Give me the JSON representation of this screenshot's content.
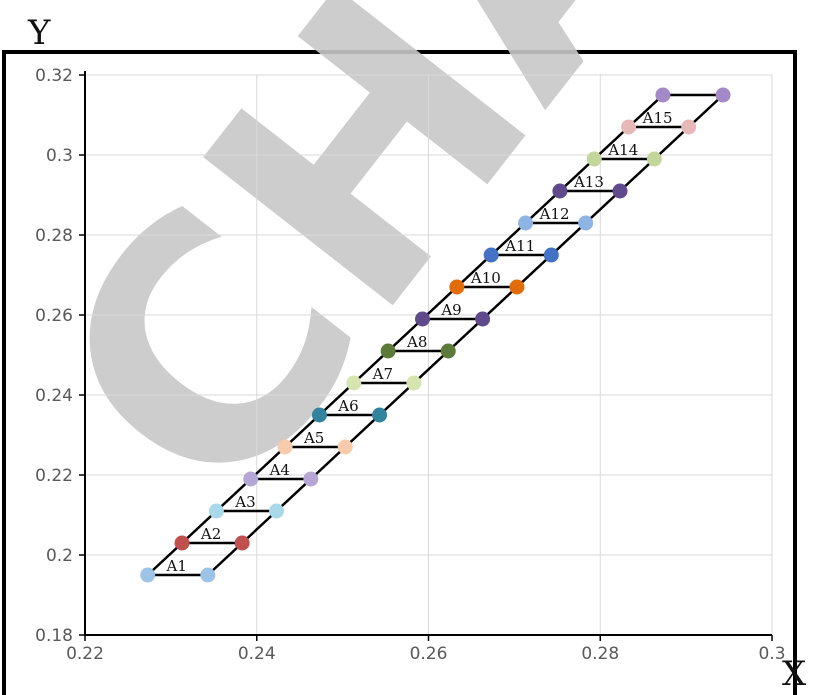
{
  "chart_data": {
    "type": "scatter",
    "xlabel": "X",
    "ylabel": "Y",
    "xlim": [
      0.22,
      0.3
    ],
    "ylim": [
      0.18,
      0.32
    ],
    "x_ticks": [
      "0.22",
      "0.24",
      "0.26",
      "0.28",
      "0.3"
    ],
    "y_ticks": [
      "0.18",
      "0.2",
      "0.22",
      "0.24",
      "0.26",
      "0.28",
      "0.3",
      "0.32"
    ],
    "grid": true,
    "legend": "none",
    "watermark": "CHAO",
    "segments": [
      {
        "label": "A1",
        "color": "#9dc3e6",
        "y": 0.195,
        "x_left": 0.2273,
        "x_right": 0.2343
      },
      {
        "label": "A2",
        "color": "#c0504d",
        "y": 0.203,
        "x_left": 0.2313,
        "x_right": 0.2383
      },
      {
        "label": "A3",
        "color": "#a8d8ea",
        "y": 0.211,
        "x_left": 0.2353,
        "x_right": 0.2423
      },
      {
        "label": "A4",
        "color": "#b4a7d6",
        "y": 0.219,
        "x_left": 0.2393,
        "x_right": 0.2463
      },
      {
        "label": "A5",
        "color": "#f8cbad",
        "y": 0.227,
        "x_left": 0.2433,
        "x_right": 0.2503
      },
      {
        "label": "A6",
        "color": "#31849b",
        "y": 0.235,
        "x_left": 0.2473,
        "x_right": 0.2543
      },
      {
        "label": "A7",
        "color": "#d6e4b0",
        "y": 0.243,
        "x_left": 0.2513,
        "x_right": 0.2583
      },
      {
        "label": "A8",
        "color": "#5c7a3a",
        "y": 0.251,
        "x_left": 0.2553,
        "x_right": 0.2623
      },
      {
        "label": "A9",
        "color": "#5f4b8b",
        "y": 0.259,
        "x_left": 0.2593,
        "x_right": 0.2663
      },
      {
        "label": "A10",
        "color": "#e36c0a",
        "y": 0.267,
        "x_left": 0.2633,
        "x_right": 0.2703
      },
      {
        "label": "A11",
        "color": "#4472c4",
        "y": 0.275,
        "x_left": 0.2673,
        "x_right": 0.2743
      },
      {
        "label": "A12",
        "color": "#8eb4e3",
        "y": 0.283,
        "x_left": 0.2713,
        "x_right": 0.2783
      },
      {
        "label": "A13",
        "color": "#5f4b8b",
        "y": 0.291,
        "x_left": 0.2753,
        "x_right": 0.2823
      },
      {
        "label": "A14",
        "color": "#c3d69b",
        "y": 0.299,
        "x_left": 0.2793,
        "x_right": 0.2863
      },
      {
        "label": "A15",
        "color": "#e6b9b8",
        "y": 0.307,
        "x_left": 0.2833,
        "x_right": 0.2903
      },
      {
        "label": "",
        "color": "#a489c8",
        "y": 0.315,
        "x_left": 0.2873,
        "x_right": 0.2943
      }
    ]
  }
}
